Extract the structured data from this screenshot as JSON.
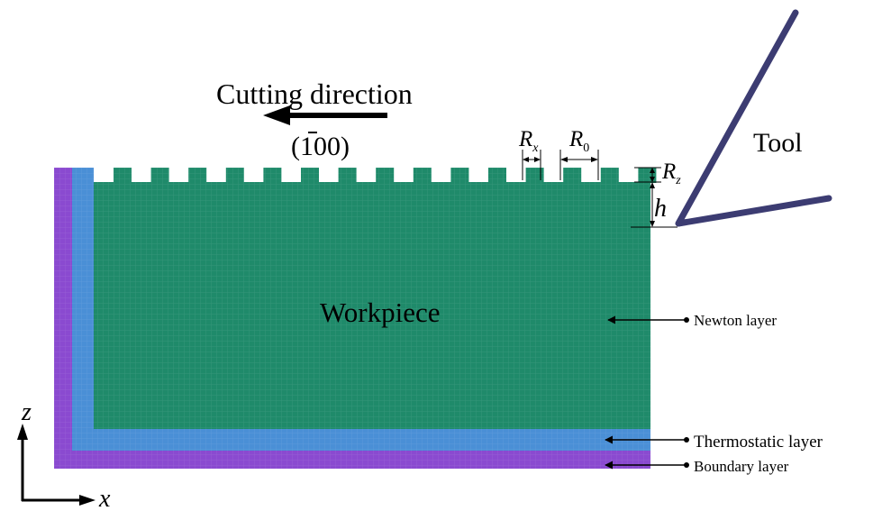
{
  "labels": {
    "cutting_direction": "Cutting direction",
    "crystal_dir_open": "(",
    "crystal_dir_bar": "1",
    "crystal_dir_rest": "00)",
    "tool": "Tool",
    "workpiece": "Workpiece",
    "newton_layer": "Newton layer",
    "thermostatic_layer": "Thermostatic layer",
    "boundary_layer": "Boundary layer",
    "rx_letter": "R",
    "rx_sub": "x",
    "r0_letter": "R",
    "r0_sub": "0",
    "rz_letter": "R",
    "rz_sub": "z",
    "h": "h",
    "z_axis": "z",
    "x_axis": "x"
  },
  "colors": {
    "workpiece_green": "#1f8a6a",
    "thermostat_blue": "#4a8fd6",
    "boundary_purple": "#8a4ad0",
    "tool_navy": "#3c3c72",
    "ink": "#000000"
  },
  "surface": {
    "bump_count": 15
  }
}
